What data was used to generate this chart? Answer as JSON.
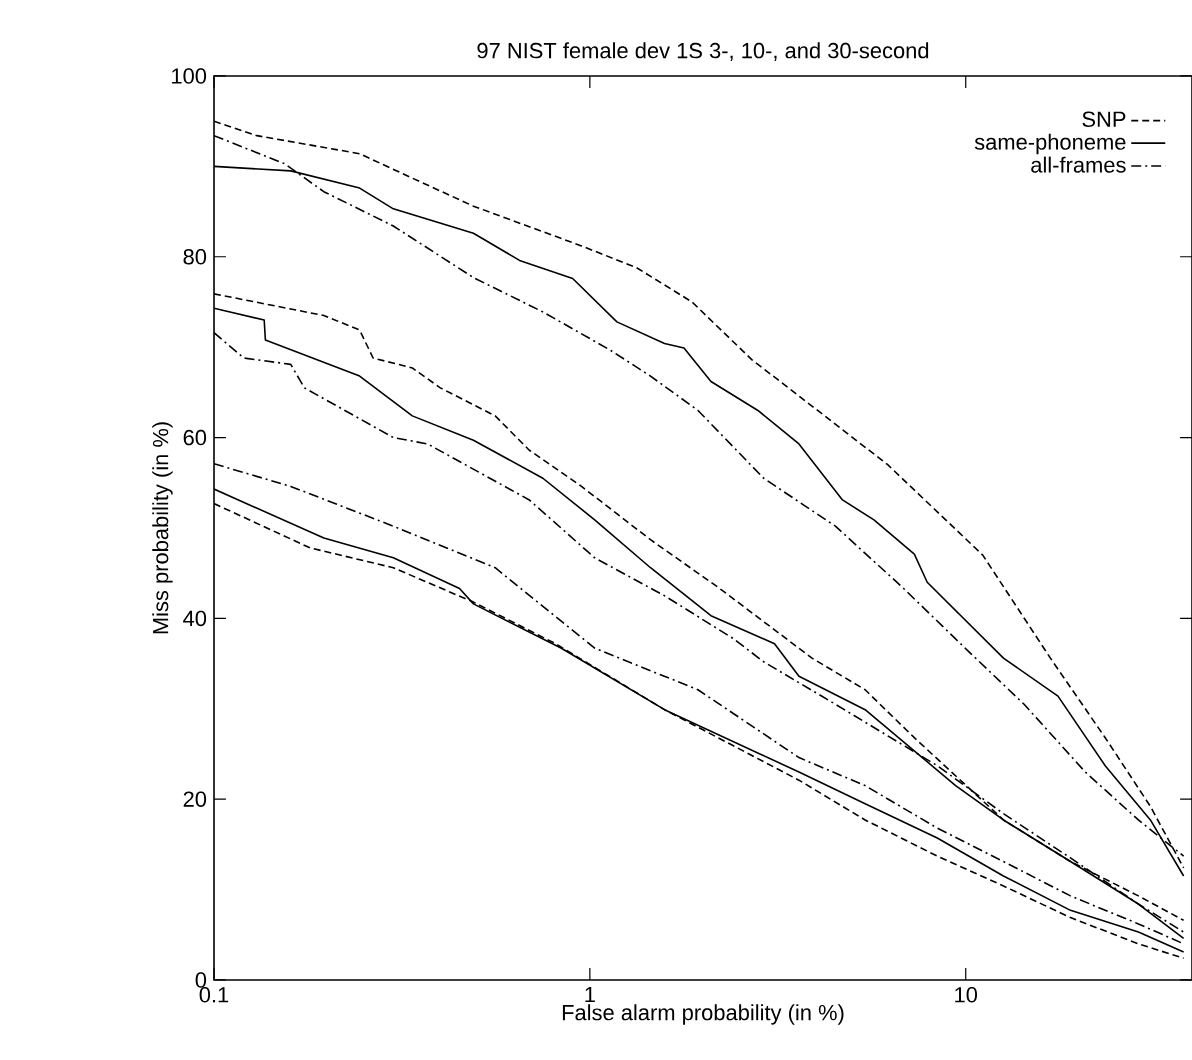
{
  "chart_data": {
    "type": "line",
    "title": "97 NIST female dev 1S 3-, 10-, and 30-second",
    "xlabel": "False alarm probability (in %)",
    "ylabel": "Miss probability (in %)",
    "log": "x",
    "xlim": [
      0.1,
      40
    ],
    "xticks": [
      0.1,
      1,
      10
    ],
    "ylim": [
      0,
      100
    ],
    "yticks": [
      0,
      20,
      40,
      60,
      80,
      100
    ],
    "grid": false,
    "legend": "top right",
    "marker": "none",
    "series": [
      {
        "name": "SNP",
        "color": "#000000",
        "line_style": "dashed",
        "x": [
          0.1,
          0.13,
          0.244,
          0.337,
          0.49,
          0.95,
          1.33,
          1.87,
          2.7,
          3.6,
          6.2,
          11.1,
          16.8,
          23.5,
          31,
          38
        ],
        "values": [
          95,
          93.4,
          91.4,
          88.7,
          85.6,
          81.2,
          78.8,
          75,
          68.6,
          64.6,
          57,
          47,
          35.6,
          26.8,
          19.2,
          12.4
        ]
      },
      {
        "name": "same-phoneme",
        "color": "#000000",
        "line_style": "solid",
        "x": [
          0.1,
          0.16,
          0.244,
          0.3,
          0.49,
          0.65,
          0.9,
          1.18,
          1.58,
          1.78,
          2.1,
          2.8,
          3.6,
          4.7,
          5.7,
          7.3,
          7.9,
          12.6,
          17.6,
          23.5,
          31,
          38
        ],
        "values": [
          90,
          89.5,
          87.6,
          85.3,
          82.6,
          79.6,
          77.6,
          72.8,
          70.4,
          69.9,
          66.2,
          63,
          59.3,
          53.1,
          50.9,
          47.1,
          44,
          35.6,
          31.4,
          23.7,
          17.7,
          11.5
        ]
      },
      {
        "name": "all-frames",
        "color": "#000000",
        "line_style": "dashdot",
        "x": [
          0.1,
          0.154,
          0.196,
          0.3,
          0.49,
          0.75,
          1.13,
          1.45,
          1.94,
          2.9,
          4.5,
          6.8,
          10.2,
          14.3,
          20.8,
          28.8,
          38
        ],
        "values": [
          93.4,
          90.3,
          87.2,
          83.4,
          77.7,
          73.9,
          69.7,
          66.8,
          63,
          55.5,
          50.2,
          43.4,
          36.3,
          30.5,
          23,
          17.7,
          13.7
        ]
      },
      {
        "color": "#000000",
        "line_style": "dashed",
        "x": [
          0.1,
          0.196,
          0.244,
          0.265,
          0.337,
          0.4,
          0.56,
          0.69,
          0.95,
          1.45,
          2.2,
          3.9,
          5.4,
          7.3,
          12.6,
          19,
          28.8,
          38
        ],
        "values": [
          75.9,
          73.5,
          71.9,
          68.8,
          67.7,
          65.5,
          62.4,
          58.6,
          54.6,
          48.7,
          43.4,
          35.6,
          32.1,
          26.8,
          17.7,
          13.1,
          9.3,
          6.6
        ]
      },
      {
        "color": "#000000",
        "line_style": "solid",
        "x": [
          0.1,
          0.136,
          0.137,
          0.244,
          0.337,
          0.49,
          0.75,
          1.03,
          1.45,
          2.1,
          3.1,
          3.6,
          5.4,
          9.4,
          12.6,
          19,
          28.8,
          38
        ],
        "values": [
          74.3,
          73,
          70.8,
          66.8,
          62.4,
          59.7,
          55.5,
          50.9,
          45.6,
          40.3,
          37.2,
          33.6,
          29.9,
          21.5,
          17.7,
          13.1,
          8.4,
          4.6
        ]
      },
      {
        "color": "#000000",
        "line_style": "dashdot",
        "x": [
          0.1,
          0.12,
          0.16,
          0.174,
          0.3,
          0.37,
          0.69,
          1.03,
          1.58,
          2.4,
          2.9,
          4.5,
          8.4,
          12.6,
          19,
          28.8,
          38
        ],
        "values": [
          71.6,
          68.8,
          68.1,
          65.5,
          60,
          59.3,
          53.1,
          46.7,
          42.5,
          37.8,
          35.2,
          30.5,
          23.7,
          18.4,
          13.5,
          8.4,
          5.3
        ]
      },
      {
        "color": "#000000",
        "line_style": "dashed",
        "x": [
          0.1,
          0.18,
          0.3,
          0.49,
          0.81,
          1.58,
          3.6,
          5.4,
          8.4,
          12.6,
          19,
          28.8,
          38
        ],
        "values": [
          52.7,
          47.8,
          45.6,
          41.8,
          37.2,
          29.9,
          22.1,
          17.7,
          13.7,
          10.4,
          6.9,
          4,
          2.4
        ]
      },
      {
        "color": "#000000",
        "line_style": "solid",
        "x": [
          0.1,
          0.196,
          0.3,
          0.45,
          0.49,
          0.84,
          1.58,
          3.6,
          5.4,
          8.4,
          12.6,
          19,
          28.8,
          38
        ],
        "values": [
          54.3,
          48.9,
          46.7,
          43.3,
          41.6,
          36.7,
          29.9,
          23,
          19.5,
          15.7,
          11.5,
          7.7,
          5.3,
          3.1
        ]
      },
      {
        "color": "#000000",
        "line_style": "dashdot",
        "x": [
          0.1,
          0.16,
          0.3,
          0.56,
          1.03,
          1.94,
          3.6,
          5.4,
          8.4,
          12.6,
          19,
          28.8,
          38
        ],
        "values": [
          57.1,
          54.6,
          50.2,
          45.6,
          36.7,
          32.1,
          24.6,
          21.5,
          16.8,
          13.1,
          9.3,
          6.2,
          4
        ]
      }
    ]
  }
}
